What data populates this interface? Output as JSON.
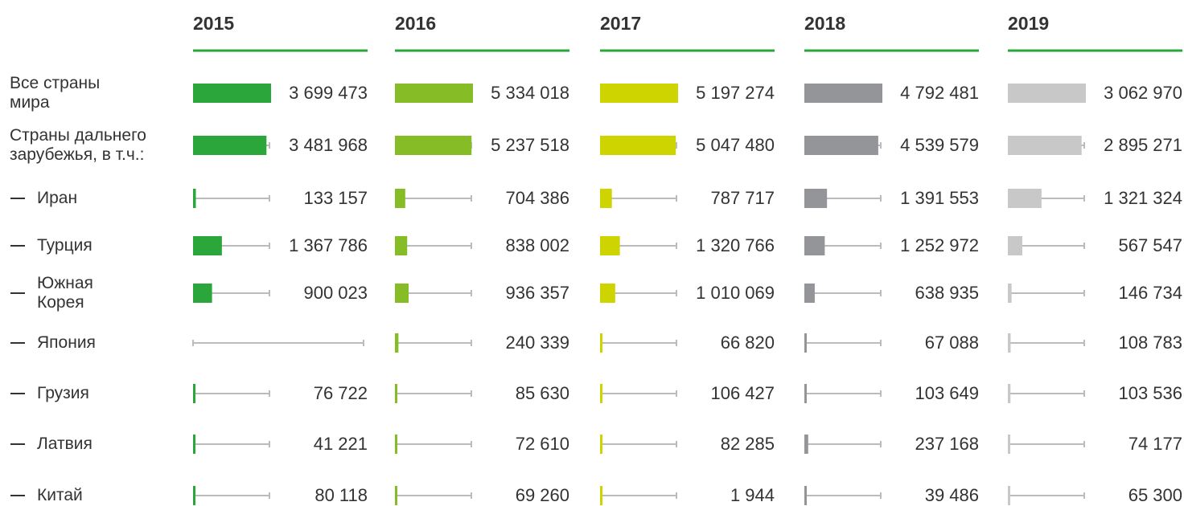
{
  "chart_data": {
    "type": "bar",
    "categories": [
      "Все страны мира",
      "Страны дальнего зарубежья,  в т.ч.:",
      "Иран",
      "Турция",
      "Южная Корея",
      "Япония",
      "Грузия",
      "Латвия",
      "Китай"
    ],
    "series": [
      {
        "name": "2015",
        "color": "#2aa63a",
        "values": [
          3699473,
          3481968,
          133157,
          1367786,
          900023,
          null,
          76722,
          41221,
          80118
        ],
        "value_labels": [
          "3 699 473",
          "3 481 968",
          "133 157",
          "1 367 786",
          "900 023",
          null,
          "76 722",
          "41 221",
          "80 118"
        ]
      },
      {
        "name": "2016",
        "color": "#86bc25",
        "values": [
          5334018,
          5237518,
          704386,
          838002,
          936357,
          240339,
          85630,
          72610,
          69260
        ],
        "value_labels": [
          "5 334 018",
          "5 237 518",
          "704 386",
          "838 002",
          "936 357",
          "240 339",
          "85 630",
          "72 610",
          "69 260"
        ]
      },
      {
        "name": "2017",
        "color": "#cdd400",
        "values": [
          5197274,
          5047480,
          787717,
          1320766,
          1010069,
          66820,
          106427,
          82285,
          1944
        ],
        "value_labels": [
          "5 197 274",
          "5 047 480",
          "787 717",
          "1 320 766",
          "1 010 069",
          "66 820",
          "106 427",
          "82 285",
          "1 944"
        ]
      },
      {
        "name": "2018",
        "color": "#939598",
        "values": [
          4792481,
          4539579,
          1391553,
          1252972,
          638935,
          67088,
          103649,
          237168,
          39486
        ],
        "value_labels": [
          "4 792 481",
          "4 539 579",
          "1 391 553",
          "1 252 972",
          "638 935",
          "67 088",
          "103 649",
          "237 168",
          "39 486"
        ]
      },
      {
        "name": "2019",
        "color": "#c8c8c8",
        "values": [
          3062970,
          2895271,
          1321324,
          567547,
          146734,
          108783,
          103536,
          74177,
          65300
        ],
        "value_labels": [
          "3 062 970",
          "2 895 271",
          "1 321 324",
          "567 547",
          "146 734",
          "108 783",
          "103 536",
          "74 177",
          "65 300"
        ]
      }
    ]
  }
}
